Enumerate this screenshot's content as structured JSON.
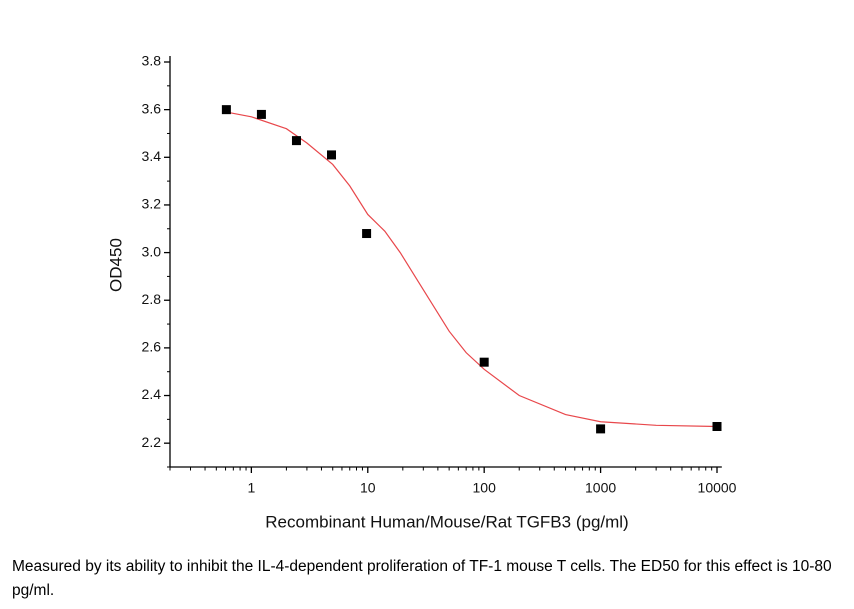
{
  "chart_data": {
    "type": "scatter",
    "xlabel": "Recombinant Human/Mouse/Rat TGFB3 (pg/ml)",
    "ylabel": "OD450",
    "xscale": "log",
    "xlim": [
      0.2,
      11000
    ],
    "xticks": [
      1,
      10,
      100,
      1000,
      10000
    ],
    "xminor_ticks": [
      0.2,
      0.3,
      0.4,
      0.5,
      0.6,
      0.7,
      0.8,
      0.9,
      2,
      3,
      4,
      5,
      6,
      7,
      8,
      9,
      20,
      30,
      40,
      50,
      60,
      70,
      80,
      90,
      200,
      300,
      400,
      500,
      600,
      700,
      800,
      900,
      2000,
      3000,
      4000,
      5000,
      6000,
      7000,
      8000,
      9000
    ],
    "ylim": [
      2.1,
      3.8
    ],
    "yticks": [
      2.2,
      2.4,
      2.6,
      2.8,
      {
        "value": 3,
        "label": "3.0"
      },
      3.2,
      3.4,
      3.6,
      3.8
    ],
    "yminor_ticks": [
      2.1,
      2.3,
      2.5,
      2.7,
      2.9,
      3.1,
      3.3,
      3.5,
      3.7
    ],
    "series": [
      {
        "color": "#000000",
        "mode": "markers",
        "x": [
          0.61,
          1.22,
          2.44,
          4.88,
          9.77,
          100,
          1000,
          10000
        ],
        "values": [
          3.6,
          3.58,
          3.47,
          3.41,
          3.08,
          2.54,
          2.26,
          2.27
        ]
      },
      {
        "color": "#e8474b",
        "mode": "line",
        "x": [
          0.61,
          1,
          2,
          3,
          5,
          7,
          10,
          14,
          19,
          27,
          50,
          70,
          100,
          200,
          500,
          1000,
          3000,
          10000
        ],
        "values": [
          3.59,
          3.57,
          3.52,
          3.46,
          3.37,
          3.28,
          3.16,
          3.09,
          3.0,
          2.88,
          2.67,
          2.58,
          2.51,
          2.4,
          2.32,
          2.29,
          2.275,
          2.27
        ]
      }
    ]
  },
  "caption": "Measured by its ability to inhibit the IL-4-dependent proliferation of TF-1 mouse T cells. The ED50 for this effect is 10-80 pg/ml."
}
